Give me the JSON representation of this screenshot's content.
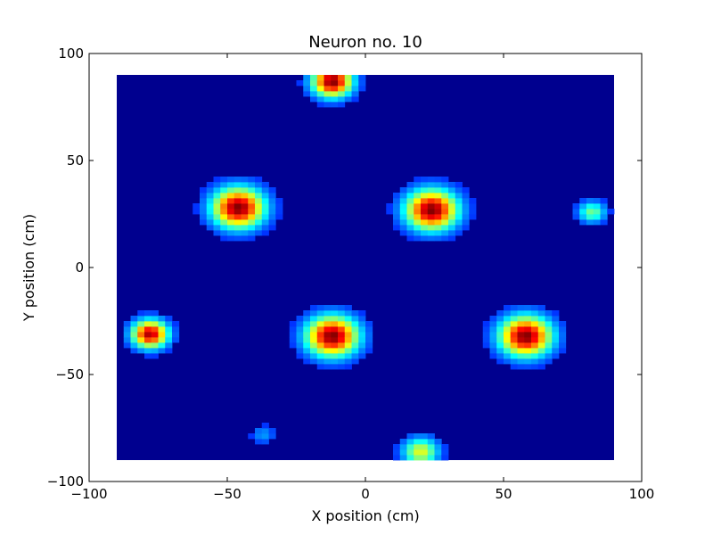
{
  "chart_data": {
    "type": "heatmap",
    "title": "Neuron no. 10",
    "xlabel": "X position (cm)",
    "ylabel": "Y position (cm)",
    "xlim": [
      -100,
      100
    ],
    "ylim": [
      -100,
      100
    ],
    "extent": [
      -90,
      90,
      -90,
      90
    ],
    "x_ticks": [
      -100,
      -50,
      0,
      50,
      100
    ],
    "y_ticks": [
      -100,
      -50,
      0,
      50,
      100
    ],
    "x_tick_labels": [
      "−100",
      "−50",
      "0",
      "50",
      "100"
    ],
    "y_tick_labels": [
      "−100",
      "−50",
      "0",
      "50",
      "100"
    ],
    "colormap": "jet",
    "background_color": "#00008f",
    "grid": false,
    "fields": [
      {
        "x": -46,
        "y": 28,
        "peak": 1.0,
        "sigma": 6.5
      },
      {
        "x": 24,
        "y": 27,
        "peak": 1.0,
        "sigma": 6.5
      },
      {
        "x": -12,
        "y": -32,
        "peak": 1.0,
        "sigma": 6.5
      },
      {
        "x": 58,
        "y": -32,
        "peak": 1.0,
        "sigma": 6.5
      },
      {
        "x": -78,
        "y": -31,
        "peak": 0.95,
        "sigma": 4.5
      },
      {
        "x": -12,
        "y": 87,
        "peak": 1.0,
        "sigma": 5
      },
      {
        "x": 20,
        "y": -86,
        "peak": 0.55,
        "sigma": 4.5
      },
      {
        "x": 82,
        "y": 26,
        "peak": 0.42,
        "sigma": 3.5
      },
      {
        "x": -37,
        "y": -78,
        "peak": 0.18,
        "sigma": 3
      }
    ]
  }
}
